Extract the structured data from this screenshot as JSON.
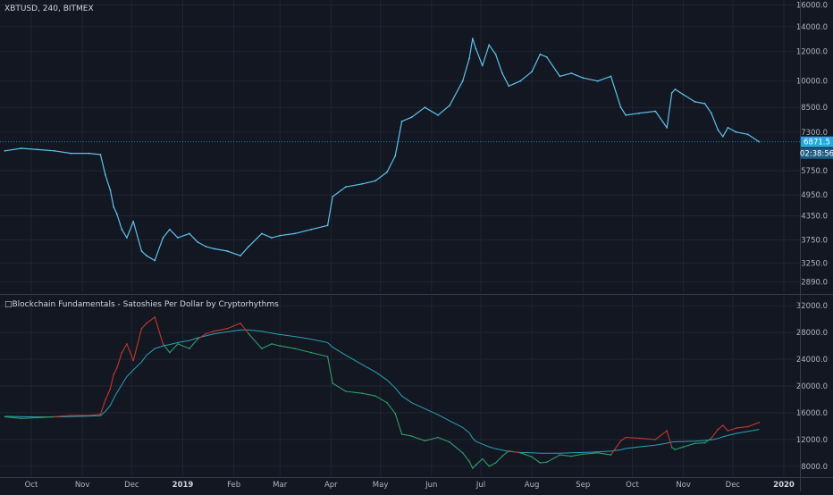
{
  "symbol_title": "XBTUSD, 240, BITMEX",
  "indicator_title": "□Blockchain Fundamentals - Satoshies Per Dollar by Cryptorhythms",
  "last_price_label": "6871.5",
  "countdown_label": "02:38:56",
  "colors": {
    "background": "#131722",
    "grid": "#1f2433",
    "axis_text": "#b2b5be",
    "price_line": "#5ec2ea",
    "last_price_badge": "#26a7de",
    "spd_above_ma": "#c1392b",
    "spd_below_ma": "#2e9e67",
    "ma_line": "#27a3b4",
    "separator": "#363c4e"
  },
  "chart_data": [
    {
      "type": "line",
      "name": "price",
      "title": "XBTUSD, 240, BITMEX",
      "y_scale": "log",
      "ylim": [
        2700,
        16500
      ],
      "y_ticks": [
        "16000.0",
        "14000.0",
        "12000.0",
        "10000.0",
        "8500.0",
        "7300.0",
        "5750.0",
        "4950.0",
        "4350.0",
        "3750.0",
        "3250.0",
        "2890.0"
      ],
      "last_value": 6871.5,
      "x": [
        "2018-09-15",
        "2018-09-25",
        "2018-10-05",
        "2018-10-15",
        "2018-10-25",
        "2018-11-05",
        "2018-11-12",
        "2018-11-15",
        "2018-11-18",
        "2018-11-20",
        "2018-11-22",
        "2018-11-25",
        "2018-11-28",
        "2018-12-02",
        "2018-12-07",
        "2018-12-10",
        "2018-12-15",
        "2018-12-20",
        "2018-12-24",
        "2018-12-29",
        "2019-01-05",
        "2019-01-10",
        "2019-01-15",
        "2019-01-20",
        "2019-01-28",
        "2019-02-05",
        "2019-02-10",
        "2019-02-18",
        "2019-02-24",
        "2019-03-01",
        "2019-03-10",
        "2019-03-20",
        "2019-03-30",
        "2019-04-02",
        "2019-04-10",
        "2019-04-20",
        "2019-04-28",
        "2019-05-05",
        "2019-05-10",
        "2019-05-14",
        "2019-05-20",
        "2019-05-28",
        "2019-06-05",
        "2019-06-12",
        "2019-06-20",
        "2019-06-24",
        "2019-06-26",
        "2019-06-28",
        "2019-07-02",
        "2019-07-06",
        "2019-07-10",
        "2019-07-14",
        "2019-07-18",
        "2019-07-25",
        "2019-08-01",
        "2019-08-06",
        "2019-08-10",
        "2019-08-18",
        "2019-08-25",
        "2019-09-01",
        "2019-09-10",
        "2019-09-18",
        "2019-09-24",
        "2019-09-27",
        "2019-10-05",
        "2019-10-15",
        "2019-10-22",
        "2019-10-25",
        "2019-10-27",
        "2019-11-01",
        "2019-11-08",
        "2019-11-14",
        "2019-11-18",
        "2019-11-22",
        "2019-11-25",
        "2019-11-28",
        "2019-12-03",
        "2019-12-10",
        "2019-12-17"
      ],
      "y": [
        6500,
        6600,
        6550,
        6500,
        6400,
        6400,
        6350,
        5600,
        5100,
        4600,
        4400,
        4000,
        3800,
        4200,
        3500,
        3400,
        3300,
        3800,
        4000,
        3800,
        3900,
        3700,
        3600,
        3550,
        3500,
        3400,
        3600,
        3900,
        3800,
        3850,
        3900,
        4000,
        4100,
        4900,
        5200,
        5300,
        5400,
        5700,
        6300,
        7800,
        8000,
        8500,
        8100,
        8600,
        10000,
        11500,
        13000,
        12200,
        11000,
        12500,
        11800,
        10500,
        9700,
        10000,
        10600,
        11800,
        11600,
        10300,
        10500,
        10200,
        10000,
        10300,
        8500,
        8100,
        8200,
        8300,
        7500,
        9300,
        9500,
        9200,
        8800,
        8700,
        8200,
        7400,
        7100,
        7500,
        7300,
        7200,
        6871.5
      ]
    },
    {
      "type": "line",
      "name": "satoshis-per-dollar",
      "title": "□Blockchain Fundamentals - Satoshies Per Dollar by Cryptorhythms",
      "ylim": [
        6500,
        33500
      ],
      "y_ticks": [
        "32000.0",
        "28000.0",
        "24000.0",
        "20000.0",
        "16000.0",
        "12000.0",
        "8000.0"
      ],
      "x_ticks": [
        "Oct",
        "Nov",
        "Dec",
        "2019",
        "Feb",
        "Mar",
        "Apr",
        "May",
        "Jun",
        "Jul",
        "Aug",
        "Sep",
        "Oct",
        "Nov",
        "Dec",
        "2020"
      ],
      "x": [
        "2018-09-15",
        "2018-09-25",
        "2018-10-05",
        "2018-10-15",
        "2018-10-25",
        "2018-11-05",
        "2018-11-12",
        "2018-11-15",
        "2018-11-18",
        "2018-11-20",
        "2018-11-22",
        "2018-11-25",
        "2018-11-28",
        "2018-12-02",
        "2018-12-07",
        "2018-12-10",
        "2018-12-15",
        "2018-12-20",
        "2018-12-24",
        "2018-12-29",
        "2019-01-05",
        "2019-01-10",
        "2019-01-15",
        "2019-01-20",
        "2019-01-28",
        "2019-02-05",
        "2019-02-10",
        "2019-02-18",
        "2019-02-24",
        "2019-03-01",
        "2019-03-10",
        "2019-03-20",
        "2019-03-30",
        "2019-04-02",
        "2019-04-10",
        "2019-04-20",
        "2019-04-28",
        "2019-05-05",
        "2019-05-10",
        "2019-05-14",
        "2019-05-20",
        "2019-05-28",
        "2019-06-05",
        "2019-06-12",
        "2019-06-20",
        "2019-06-24",
        "2019-06-26",
        "2019-06-28",
        "2019-07-02",
        "2019-07-06",
        "2019-07-10",
        "2019-07-14",
        "2019-07-18",
        "2019-07-25",
        "2019-08-01",
        "2019-08-06",
        "2019-08-10",
        "2019-08-18",
        "2019-08-25",
        "2019-09-01",
        "2019-09-10",
        "2019-09-18",
        "2019-09-24",
        "2019-09-27",
        "2019-10-05",
        "2019-10-15",
        "2019-10-22",
        "2019-10-25",
        "2019-10-27",
        "2019-11-01",
        "2019-11-08",
        "2019-11-14",
        "2019-11-18",
        "2019-11-22",
        "2019-11-25",
        "2019-11-28",
        "2019-12-03",
        "2019-12-10",
        "2019-12-17"
      ],
      "series": [
        {
          "role": "value",
          "values": [
            15400,
            15150,
            15250,
            15400,
            15600,
            15600,
            15750,
            17900,
            19600,
            21700,
            22700,
            25000,
            26300,
            23800,
            28600,
            29400,
            30300,
            26300,
            25000,
            26300,
            25600,
            27000,
            27800,
            28200,
            28600,
            29400,
            27800,
            25600,
            26300,
            26000,
            25600,
            25000,
            24400,
            20400,
            19200,
            18900,
            18500,
            17500,
            15900,
            12800,
            12500,
            11800,
            12300,
            11600,
            10000,
            8700,
            7700,
            8200,
            9100,
            8000,
            8500,
            9500,
            10300,
            10000,
            9400,
            8500,
            8600,
            9700,
            9500,
            9800,
            10000,
            9700,
            11800,
            12300,
            12200,
            12000,
            13300,
            10800,
            10500,
            10900,
            11400,
            11500,
            12200,
            13500,
            14100,
            13300,
            13700,
            13900,
            14550
          ]
        },
        {
          "role": "moving-average",
          "values": [
            15450,
            15400,
            15380,
            15380,
            15420,
            15480,
            15550,
            16200,
            17100,
            18100,
            19000,
            20200,
            21400,
            22400,
            23600,
            24600,
            25600,
            26000,
            26200,
            26500,
            26800,
            27200,
            27500,
            27800,
            28100,
            28400,
            28400,
            28200,
            27900,
            27700,
            27400,
            27000,
            26500,
            25800,
            24600,
            23200,
            22100,
            20900,
            19700,
            18500,
            17500,
            16600,
            15700,
            14800,
            13800,
            13000,
            12200,
            11700,
            11300,
            10900,
            10600,
            10400,
            10200,
            10050,
            10000,
            9950,
            9950,
            9950,
            10000,
            10050,
            10150,
            10250,
            10450,
            10650,
            10900,
            11150,
            11450,
            11600,
            11650,
            11700,
            11750,
            11850,
            11950,
            12150,
            12400,
            12600,
            12900,
            13200,
            13500
          ]
        }
      ]
    }
  ]
}
